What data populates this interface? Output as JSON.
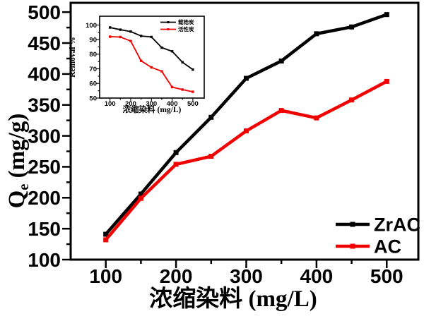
{
  "figure": {
    "background": "#ffffff",
    "series_colors": {
      "zrac": "#000000",
      "ac": "#f20000"
    }
  },
  "chart_data": [
    {
      "id": "main",
      "type": "line",
      "x": [
        100,
        150,
        200,
        250,
        300,
        350,
        400,
        450,
        500
      ],
      "series": [
        {
          "name": "ZrAC",
          "color": "#000000",
          "marker": "square",
          "values": [
            141,
            206,
            273,
            330,
            393,
            421,
            465,
            476,
            496
          ]
        },
        {
          "name": "AC",
          "color": "#f20000",
          "marker": "square",
          "values": [
            132,
            199,
            254,
            267,
            308,
            341,
            329,
            358,
            388
          ]
        }
      ],
      "xlabel": "浓缩染料 (mg/L)",
      "ylabel": {
        "base": "Q",
        "sub": "e",
        "rest": " (mg/g)"
      },
      "xticks": [
        100,
        200,
        300,
        400,
        500
      ],
      "xminor": [
        150,
        250,
        350,
        450
      ],
      "yticks": [
        100,
        150,
        200,
        250,
        300,
        350,
        400,
        450,
        500
      ],
      "yminor": [
        125,
        175,
        225,
        275,
        325,
        375,
        425,
        475
      ],
      "xlim": [
        50,
        545
      ],
      "ylim": [
        100,
        515
      ],
      "grid": false,
      "legend_position": "bottom-right"
    },
    {
      "id": "inset",
      "type": "line",
      "x": [
        100,
        150,
        200,
        250,
        300,
        350,
        400,
        450,
        500
      ],
      "series": [
        {
          "name": "载锆炭",
          "color": "#000000",
          "marker": "square",
          "values": [
            98.3,
            96.8,
            95.5,
            92.5,
            91.8,
            84.5,
            82,
            74.5,
            69.5
          ]
        },
        {
          "name": "活性炭",
          "color": "#f20000",
          "marker": "square",
          "values": [
            92,
            91.8,
            89,
            75.5,
            71,
            68.3,
            57.5,
            55.8,
            54.3
          ]
        }
      ],
      "xlabel": "浓缩染料 (mg/L)",
      "ylabel": "Removal %",
      "xticks": [
        100,
        200,
        300,
        400,
        500
      ],
      "xminor": [
        150,
        250,
        350,
        450
      ],
      "yticks": [
        50,
        60,
        70,
        80,
        90,
        100
      ],
      "yminor": [
        55,
        65,
        75,
        85,
        95
      ],
      "xlim": [
        50,
        555
      ],
      "ylim": [
        50,
        106
      ],
      "grid": false,
      "legend_position": "top-right"
    }
  ]
}
